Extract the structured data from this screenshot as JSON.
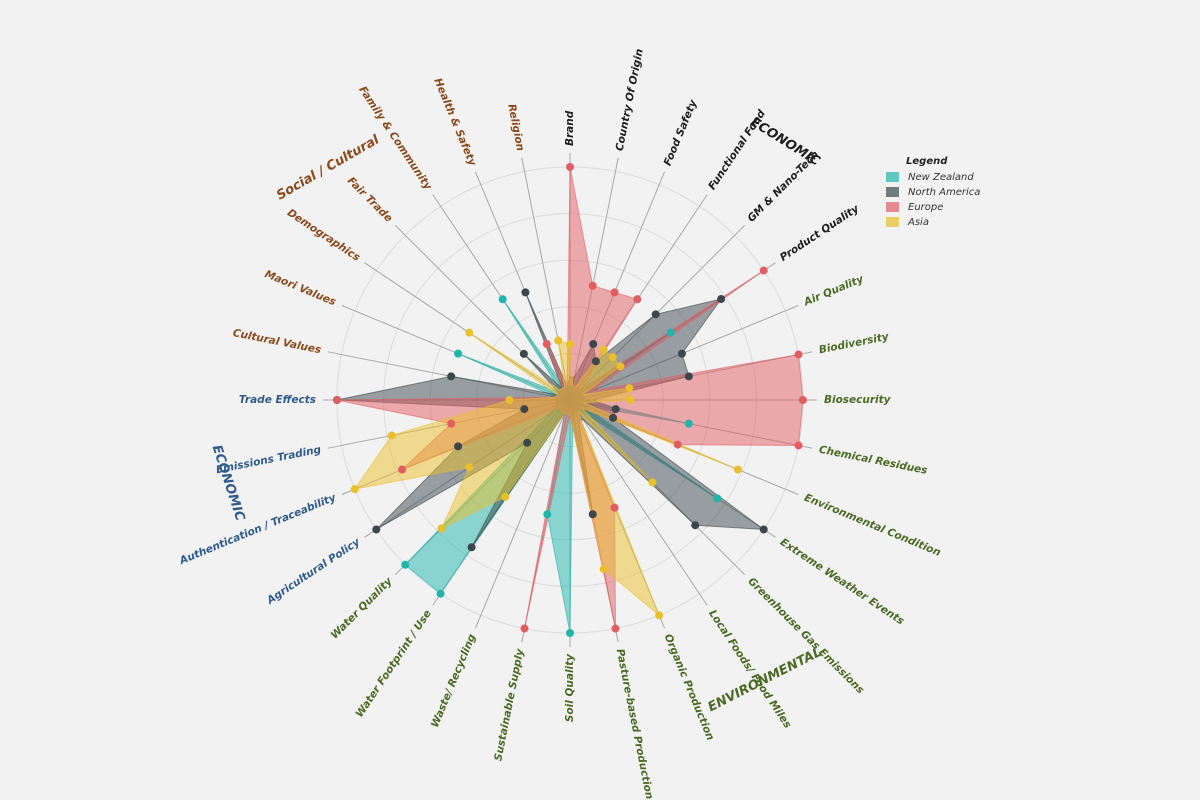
{
  "chart_data": {
    "type": "radar",
    "categories": [
      "Brand",
      "Country Of Origin",
      "Food Safety",
      "Functional Food",
      "GM & Nano-Tech",
      "Product Quality",
      "Air Quality",
      "Biodiversity",
      "Biosecurity",
      "Chemical Residues",
      "Environmental Condition",
      "Extreme Weather Events",
      "Greenhouse Gas Emissions",
      "Local Foods/ Food Miles",
      "Organic Production",
      "Pasture-based Production",
      "Soil Quality",
      "Sustainable Supply",
      "Waste/ Recycling",
      "Water Footprint / Use",
      "Water Quality",
      "Agricultural Policy",
      "Authentication / Traceability",
      "Emissions Trading",
      "Trade Effects",
      "Cultural Values",
      "Maori Values",
      "Demographics",
      "Fair Trade",
      "Family & Community",
      "Health & Safety",
      "Religion"
    ],
    "annotations": [
      "ECONOMIC",
      "ENVIRONMENTAL",
      "ECONOMIC",
      "Social / Cultural"
    ],
    "legend_title": "Legend",
    "rlim": [
      0,
      5
    ],
    "rticks": [
      1,
      2,
      3,
      4,
      5
    ],
    "grid": true,
    "series": [
      {
        "name": "New Zealand",
        "color": "#1fb5ab",
        "values": [
          0.3,
          0.3,
          0.3,
          0.3,
          0.3,
          2.6,
          0.3,
          0.3,
          0.3,
          2.6,
          0.3,
          3.8,
          0.3,
          0.3,
          0.3,
          0.3,
          5,
          2.5,
          0.3,
          5,
          5,
          0.5,
          0.3,
          0.3,
          0.3,
          0.3,
          2.6,
          0.3,
          0.3,
          2.6,
          0.3,
          0.3
        ]
      },
      {
        "name": "North America",
        "color": "#3c474d",
        "values": [
          0.5,
          0.5,
          1.3,
          1.0,
          2.6,
          3.9,
          2.6,
          2.6,
          0.5,
          1.0,
          1.0,
          5,
          3.8,
          0.5,
          0.5,
          2.5,
          0.3,
          0.3,
          0.3,
          3.8,
          1.3,
          5,
          2.6,
          1.0,
          5,
          2.6,
          0.3,
          0.3,
          1.4,
          0.3,
          2.5,
          0.3
        ]
      },
      {
        "name": "Europe",
        "color": "#e25d62",
        "values": [
          5,
          2.5,
          2.5,
          2.6,
          0.3,
          5,
          0.5,
          5,
          5,
          5,
          2.5,
          0.3,
          0.3,
          0.3,
          2.5,
          5,
          0.3,
          5,
          0.3,
          0.3,
          0.3,
          0.3,
          3.9,
          2.6,
          5,
          0.3,
          0.3,
          0.3,
          0.3,
          0.3,
          1.3,
          0.3
        ]
      },
      {
        "name": "Asia",
        "color": "#e9bf2a",
        "values": [
          1.2,
          0.3,
          0.3,
          1.3,
          1.3,
          1.3,
          0.3,
          1.3,
          1.3,
          0.3,
          3.9,
          0.3,
          2.5,
          0.3,
          5,
          3.7,
          0.3,
          0.3,
          0.3,
          2.5,
          3.9,
          2.6,
          5,
          3.9,
          1.3,
          0.3,
          0.3,
          2.6,
          0.3,
          0.3,
          0.3,
          1.3
        ]
      }
    ]
  }
}
